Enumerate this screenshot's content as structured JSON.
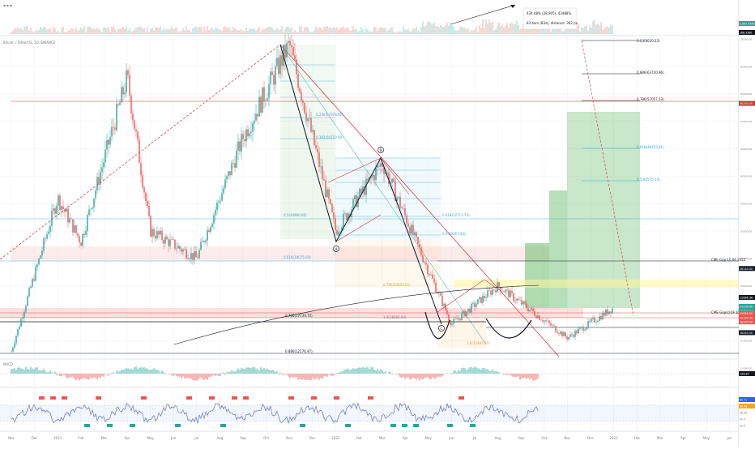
{
  "colors": {
    "up": "#26a69a",
    "down": "#ef5350",
    "fib": "#2fa8d8",
    "red_line": "#d32f2f",
    "green_zone": "#4caf50",
    "axis_text": "#787b86"
  },
  "header": {
    "symbol_line": "Bitcoin / TetherUS, 1D, BINANCE",
    "measure_line1": "434.48% (28,905), 43488%",
    "measure_line2": "83 bars (83d), distance: 302 px"
  },
  "price_axis": {
    "ticks": [
      "70000.00",
      "65000.00",
      "60000.00",
      "55000.00",
      "50000.00",
      "45000.00",
      "40000.00",
      "35000.00",
      "30000.00",
      "25000.00",
      "20000.00",
      "15000.00",
      "10000.00"
    ],
    "badges": [
      {
        "label": "58250.00",
        "price": 58250,
        "color": "#d32f2f"
      },
      {
        "label": "28140.00",
        "price": 28140,
        "color": "#131722"
      },
      {
        "label": "22866.38",
        "price": 22866,
        "color": "#131722"
      },
      {
        "label": "21239.00",
        "price": 21239,
        "color": "#26a69a"
      },
      {
        "label": "20422.44",
        "price": 20422,
        "color": "#26a69a"
      },
      {
        "label": "19956.00",
        "price": 19956,
        "color": "#ef5350"
      },
      {
        "label": "19190.00",
        "price": 19190,
        "color": "#ef5350"
      },
      {
        "label": "18400.00",
        "price": 18400,
        "color": "#ef5350"
      },
      {
        "label": "16440.00",
        "price": 16440,
        "color": "#131722"
      }
    ],
    "volume_badges": [
      "2.067.750K",
      "188.358K"
    ],
    "macd_badge": "136.87",
    "rsi_badges": [
      "62.71",
      "56.48",
      "46.38",
      "40.0",
      "30.0"
    ]
  },
  "time_axis": [
    "Nov",
    "Dec",
    "2021",
    "Feb",
    "Mar",
    "Apr",
    "May",
    "Jun",
    "Jul",
    "Aug",
    "Sep",
    "Oct",
    "Nov",
    "Dec",
    "2022",
    "Feb",
    "Mar",
    "Apr",
    "May",
    "Jun",
    "Jul",
    "Aug",
    "Sep",
    "Oct",
    "Nov",
    "Dec",
    "2023",
    "Feb",
    "Mar",
    "Apr",
    "May",
    "Jun"
  ],
  "annotations": {
    "waves": [
      "A",
      "B",
      "C"
    ],
    "cme_gap_upper": "CME Gap 10.06.2022",
    "cme_gap_lower": "CME Gap(c)19.10.2022",
    "fib_left": [
      "0.786(17739.70)",
      "0.886(12176.97)"
    ],
    "fib_drop": [
      "0.236(57978.00)",
      "0.382(50710.00)",
      "0.5(44990.00)",
      "0.618(39075.00)",
      "0.786(29800.00)",
      "1.0(18360.00)"
    ],
    "fib_b": [
      "0.618(32713.73)",
      "0.5(30367.00)",
      "1.0(15497.40)"
    ],
    "fib_target": [
      "1.0(69020.22)",
      "0.886(63720.96)",
      "0.786(57057.33)",
      "0.618(48252.81)",
      "0.5(40575.14)"
    ]
  },
  "chart_data": {
    "type": "candlestick",
    "title": "Bitcoin / TetherUS, 1D, BINANCE",
    "x_range": [
      "Nov 2020",
      "Jun 2023"
    ],
    "ylim": [
      10000,
      72000
    ],
    "grid": true,
    "swing_path": [
      {
        "date": "Nov 2020",
        "price": 13000
      },
      {
        "date": "Jan 2021",
        "price": 41000
      },
      {
        "date": "Feb 2021",
        "price": 33000
      },
      {
        "date": "Apr 2021",
        "price": 63000
      },
      {
        "date": "May 2021",
        "price": 35000
      },
      {
        "date": "Jul 2021",
        "price": 30000
      },
      {
        "date": "Sep 2021",
        "price": 52000
      },
      {
        "date": "Nov 2021",
        "price": 69000
      },
      {
        "date": "Jan 2022",
        "price": 35000
      },
      {
        "date": "Mar 2022",
        "price": 47500
      },
      {
        "date": "Jun 2022",
        "price": 18000
      },
      {
        "date": "Aug 2022",
        "price": 25000
      },
      {
        "date": "Nov 2022",
        "price": 15500
      },
      {
        "date": "Jan 2023",
        "price": 21000
      }
    ],
    "key_levels": [
      58250,
      28140,
      22866,
      21239,
      20422,
      19956,
      19190,
      18400,
      16440
    ]
  }
}
